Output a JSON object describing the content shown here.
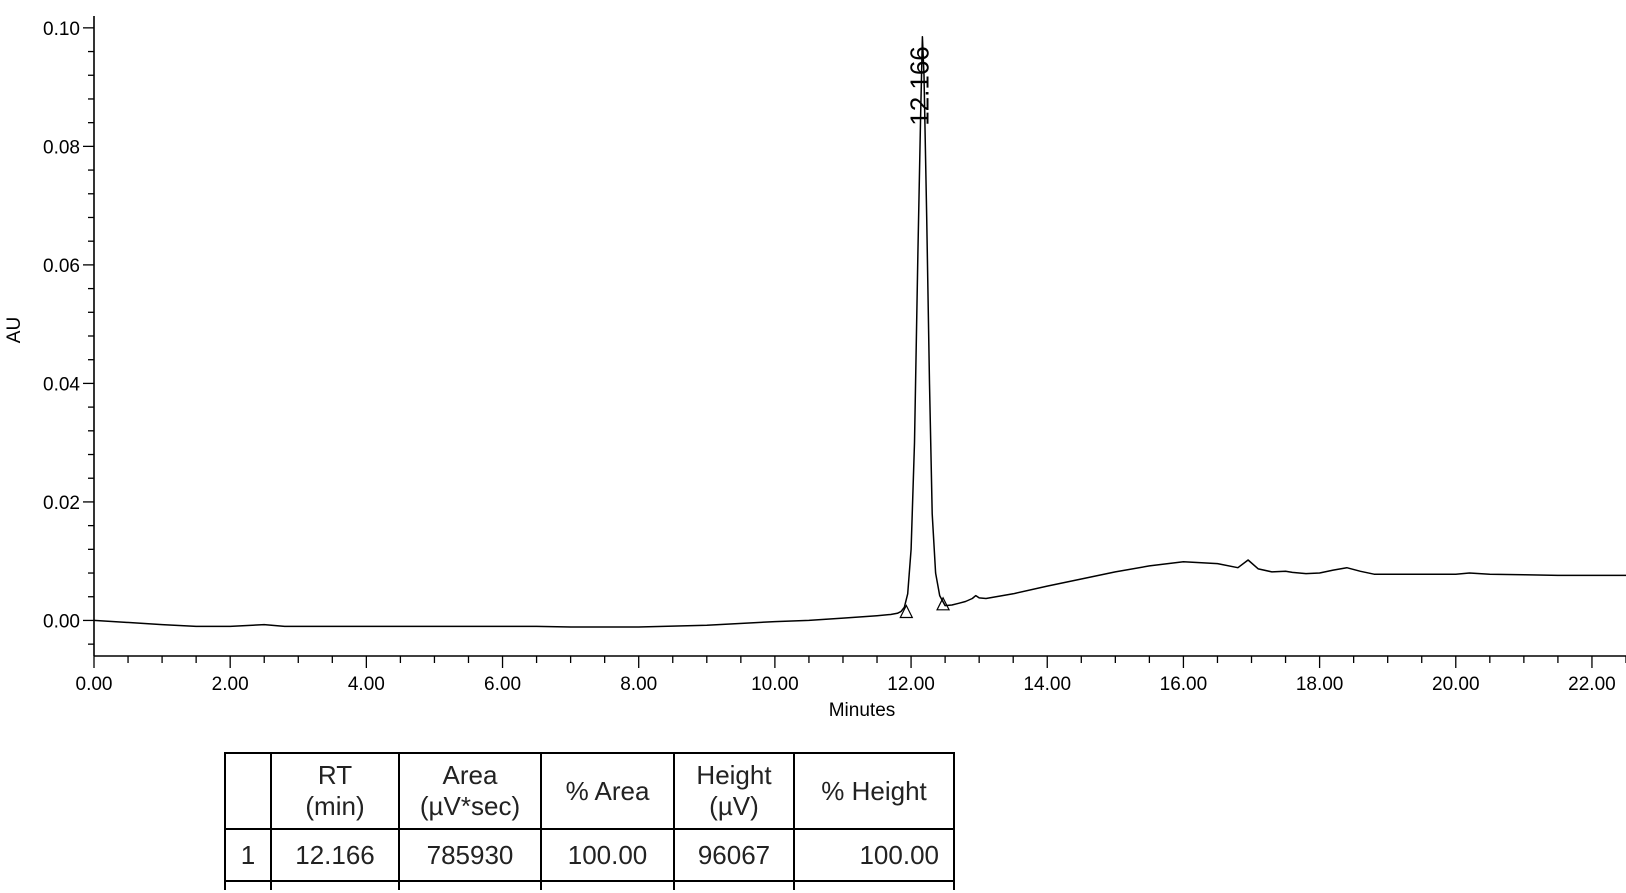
{
  "chart_data": {
    "type": "line",
    "xlabel": "Minutes",
    "ylabel": "AU",
    "xlim": [
      0,
      22.5
    ],
    "ylim": [
      -0.006,
      0.102
    ],
    "x_ticks": [
      "0.00",
      "2.00",
      "4.00",
      "6.00",
      "8.00",
      "10.00",
      "12.00",
      "14.00",
      "16.00",
      "18.00",
      "20.00",
      "22.00"
    ],
    "y_ticks": [
      "0.00",
      "0.02",
      "0.04",
      "0.06",
      "0.08",
      "0.10"
    ],
    "series": [
      {
        "x": [
          0.0,
          1.0,
          1.5,
          2.0,
          2.5,
          2.8,
          3.5,
          5.0,
          6.5,
          7.0,
          8.0,
          9.0,
          10.0,
          10.5,
          11.0,
          11.5,
          11.7,
          11.8,
          11.85,
          11.9,
          11.95,
          12.0,
          12.05,
          12.1,
          12.14,
          12.166,
          12.19,
          12.23,
          12.27,
          12.31,
          12.36,
          12.42,
          12.5,
          12.6,
          12.7,
          12.8,
          12.9,
          12.95,
          13.0,
          13.1,
          13.5,
          14.0,
          14.5,
          15.0,
          15.5,
          16.0,
          16.5,
          16.8,
          16.95,
          17.1,
          17.3,
          17.5,
          17.6,
          17.8,
          18.0,
          18.2,
          18.4,
          18.6,
          18.8,
          19.0,
          19.5,
          20.0,
          20.2,
          20.5,
          21.0,
          21.5,
          22.0,
          22.5
        ],
        "y": [
          0.0,
          -0.0007,
          -0.001,
          -0.001,
          -0.0007,
          -0.001,
          -0.001,
          -0.001,
          -0.001,
          -0.0011,
          -0.0011,
          -0.0008,
          -0.0002,
          0.0,
          0.0004,
          0.0008,
          0.001,
          0.0012,
          0.0015,
          0.0022,
          0.0045,
          0.012,
          0.03,
          0.062,
          0.085,
          0.0985,
          0.092,
          0.068,
          0.04,
          0.018,
          0.008,
          0.0042,
          0.0025,
          0.0026,
          0.0029,
          0.0032,
          0.0037,
          0.0042,
          0.0038,
          0.0037,
          0.0045,
          0.0058,
          0.007,
          0.0082,
          0.0092,
          0.0099,
          0.0096,
          0.0089,
          0.0102,
          0.0087,
          0.0082,
          0.0083,
          0.0081,
          0.0079,
          0.008,
          0.0085,
          0.0089,
          0.0083,
          0.0078,
          0.0078,
          0.0078,
          0.0078,
          0.008,
          0.0078,
          0.0077,
          0.0076,
          0.0076,
          0.0076
        ]
      }
    ],
    "peak_label": "12.166",
    "peak_label_x": 12.166,
    "baseline_markers": [
      [
        11.93,
        0.001
      ],
      [
        12.47,
        0.0023
      ]
    ]
  },
  "peak_table": {
    "headers": [
      {
        "line1": "",
        "line2": ""
      },
      {
        "line1": "RT",
        "line2": "(min)"
      },
      {
        "line1": "Area",
        "line2": "(µV*sec)"
      },
      {
        "line1": "% Area",
        "line2": ""
      },
      {
        "line1": "Height",
        "line2": "(µV)"
      },
      {
        "line1": "% Height",
        "line2": ""
      }
    ],
    "rows": [
      {
        "index": "1",
        "rt": "12.166",
        "area": "785930",
        "pct_area": "100.00",
        "height": "96067",
        "pct_height": "100.00"
      }
    ]
  }
}
